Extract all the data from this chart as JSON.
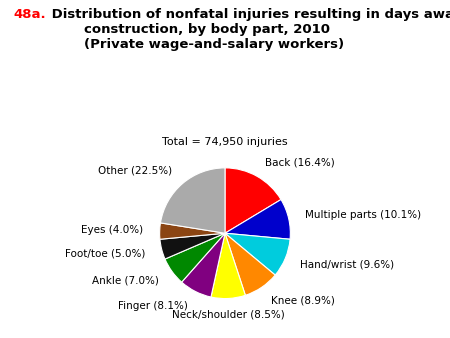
{
  "title_prefix": "48a.",
  "title_main": " Distribution of nonfatal injuries resulting in days away from work in\n        construction, by body part, 2010\n        (Private wage-and-salary workers)",
  "subtitle": "Total = 74,950 injuries",
  "labels": [
    "Back",
    "Multiple parts",
    "Hand/wrist",
    "Knee",
    "Neck/shoulder",
    "Finger",
    "Ankle",
    "Foot/toe",
    "Eyes",
    "Other"
  ],
  "percentages": [
    16.4,
    10.1,
    9.6,
    8.9,
    8.5,
    8.1,
    7.0,
    5.0,
    4.0,
    22.5
  ],
  "colors": [
    "#ff0000",
    "#0000cc",
    "#00ccdd",
    "#ff8800",
    "#ffff00",
    "#800080",
    "#008800",
    "#111111",
    "#8B4513",
    "#aaaaaa"
  ],
  "startangle": 90,
  "label_fontsize": 7.5,
  "title_fontsize": 9.5,
  "subtitle_fontsize": 8.0
}
